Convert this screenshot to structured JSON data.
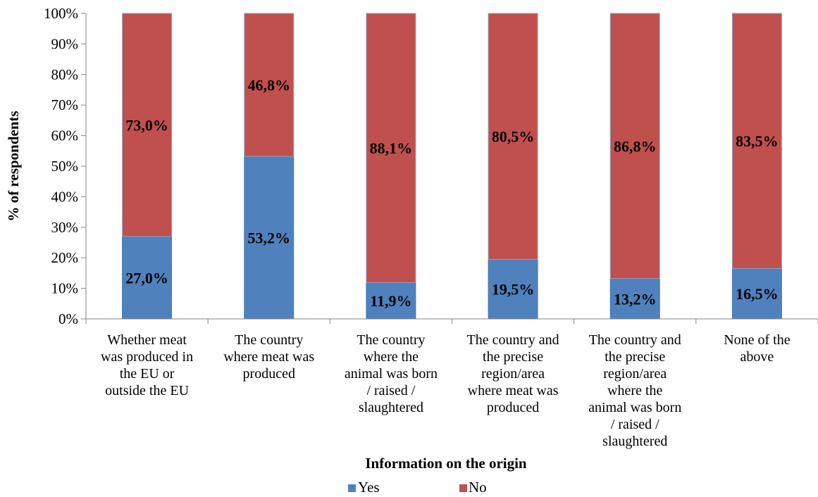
{
  "chart_data": {
    "type": "bar",
    "stacked": true,
    "percent_stacked": true,
    "xlabel": "Information on the origin",
    "ylabel": "% of respondents",
    "ylim": [
      0,
      100
    ],
    "yticks": [
      "0%",
      "10%",
      "20%",
      "30%",
      "40%",
      "50%",
      "60%",
      "70%",
      "80%",
      "90%",
      "100%"
    ],
    "grid": false,
    "legend": "bottom",
    "categories": [
      [
        "Whether meat",
        "was produced in",
        "the EU or",
        "outside the EU"
      ],
      [
        "The country",
        "where meat was",
        "produced"
      ],
      [
        "The country",
        "where the",
        "animal was born",
        "/ raised /",
        "slaughtered"
      ],
      [
        "The country and",
        "the precise",
        "region/area",
        "where meat was",
        "produced"
      ],
      [
        "The country and",
        "the precise",
        "region/area",
        "where the",
        "animal was born",
        "/ raised /",
        "slaughtered"
      ],
      [
        "None of the",
        "above"
      ]
    ],
    "series": [
      {
        "name": "Yes",
        "color": "#4f81bd",
        "values": [
          27.0,
          53.2,
          11.9,
          19.5,
          13.2,
          16.5
        ],
        "labels": [
          "27,0%",
          "53,2%",
          "11,9%",
          "19,5%",
          "13,2%",
          "16,5%"
        ]
      },
      {
        "name": "No",
        "color": "#c0504d",
        "values": [
          73.0,
          46.8,
          88.1,
          80.5,
          86.8,
          83.5
        ],
        "labels": [
          "73,0%",
          "46,8%",
          "88,1%",
          "80,5%",
          "86,8%",
          "83,5%"
        ]
      }
    ]
  }
}
